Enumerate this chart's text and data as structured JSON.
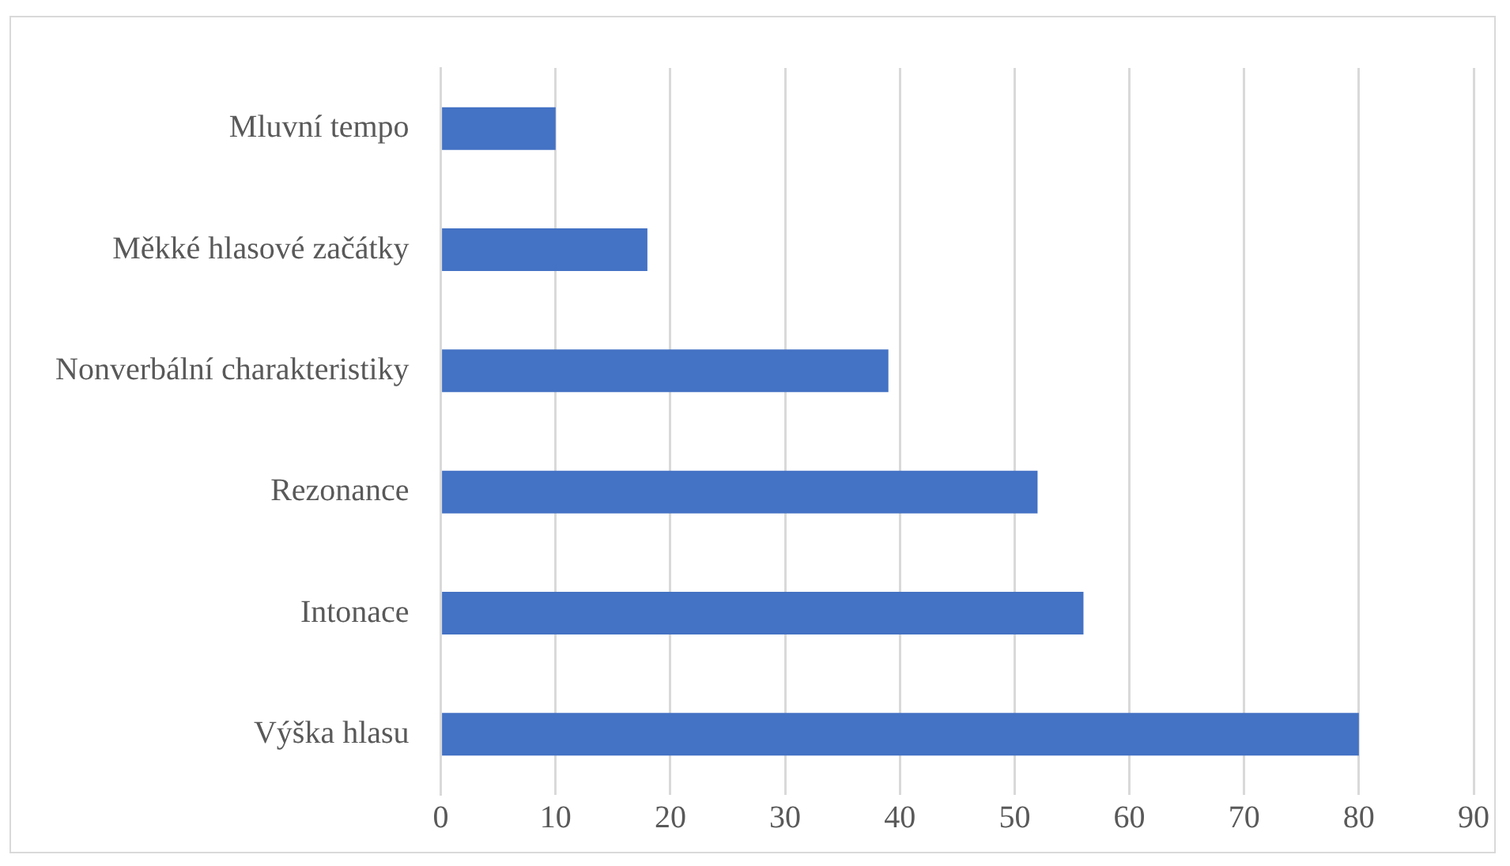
{
  "chart_data": {
    "type": "bar",
    "orientation": "horizontal",
    "categories": [
      "Mluvní tempo",
      "Měkké hlasové začátky",
      "Nonverbální charakteristiky",
      "Rezonance",
      "Intonace",
      "Výška hlasu"
    ],
    "values": [
      10,
      18,
      39,
      52,
      56,
      80
    ],
    "color": "#4472c4",
    "xlim": [
      0,
      90
    ],
    "xticks": [
      0,
      10,
      20,
      30,
      40,
      50,
      60,
      70,
      80,
      90
    ],
    "grid": "x"
  }
}
